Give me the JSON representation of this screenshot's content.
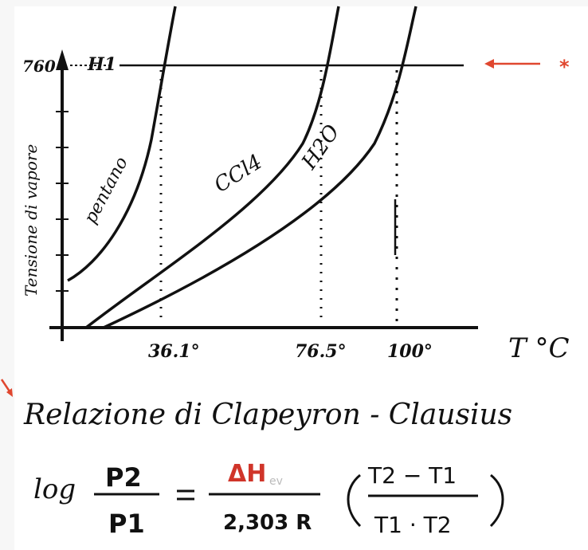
{
  "diagram": {
    "y_axis_label": "Tensione di vapore",
    "y_top_label": "760",
    "horizontal_line_label": "H1",
    "x_axis_label": "T °C",
    "curves": [
      {
        "name": "pentano",
        "bp": "36.1°"
      },
      {
        "name": "CCl4",
        "bp": "76.5°"
      },
      {
        "name": "H2O",
        "bp": "100°"
      }
    ],
    "marker": "*"
  },
  "formula": {
    "title": "Relazione di Clapeyron - Clausius",
    "log": "log",
    "p2": "P2",
    "p1": "P1",
    "delta_h": "ΔH",
    "delta_h_sub": "ev",
    "denominator": "2,303 R",
    "t_diff": "T2 − T1",
    "t_prod": "T1 · T2"
  },
  "colors": {
    "ink": "#111111",
    "accent": "#e0472f"
  }
}
